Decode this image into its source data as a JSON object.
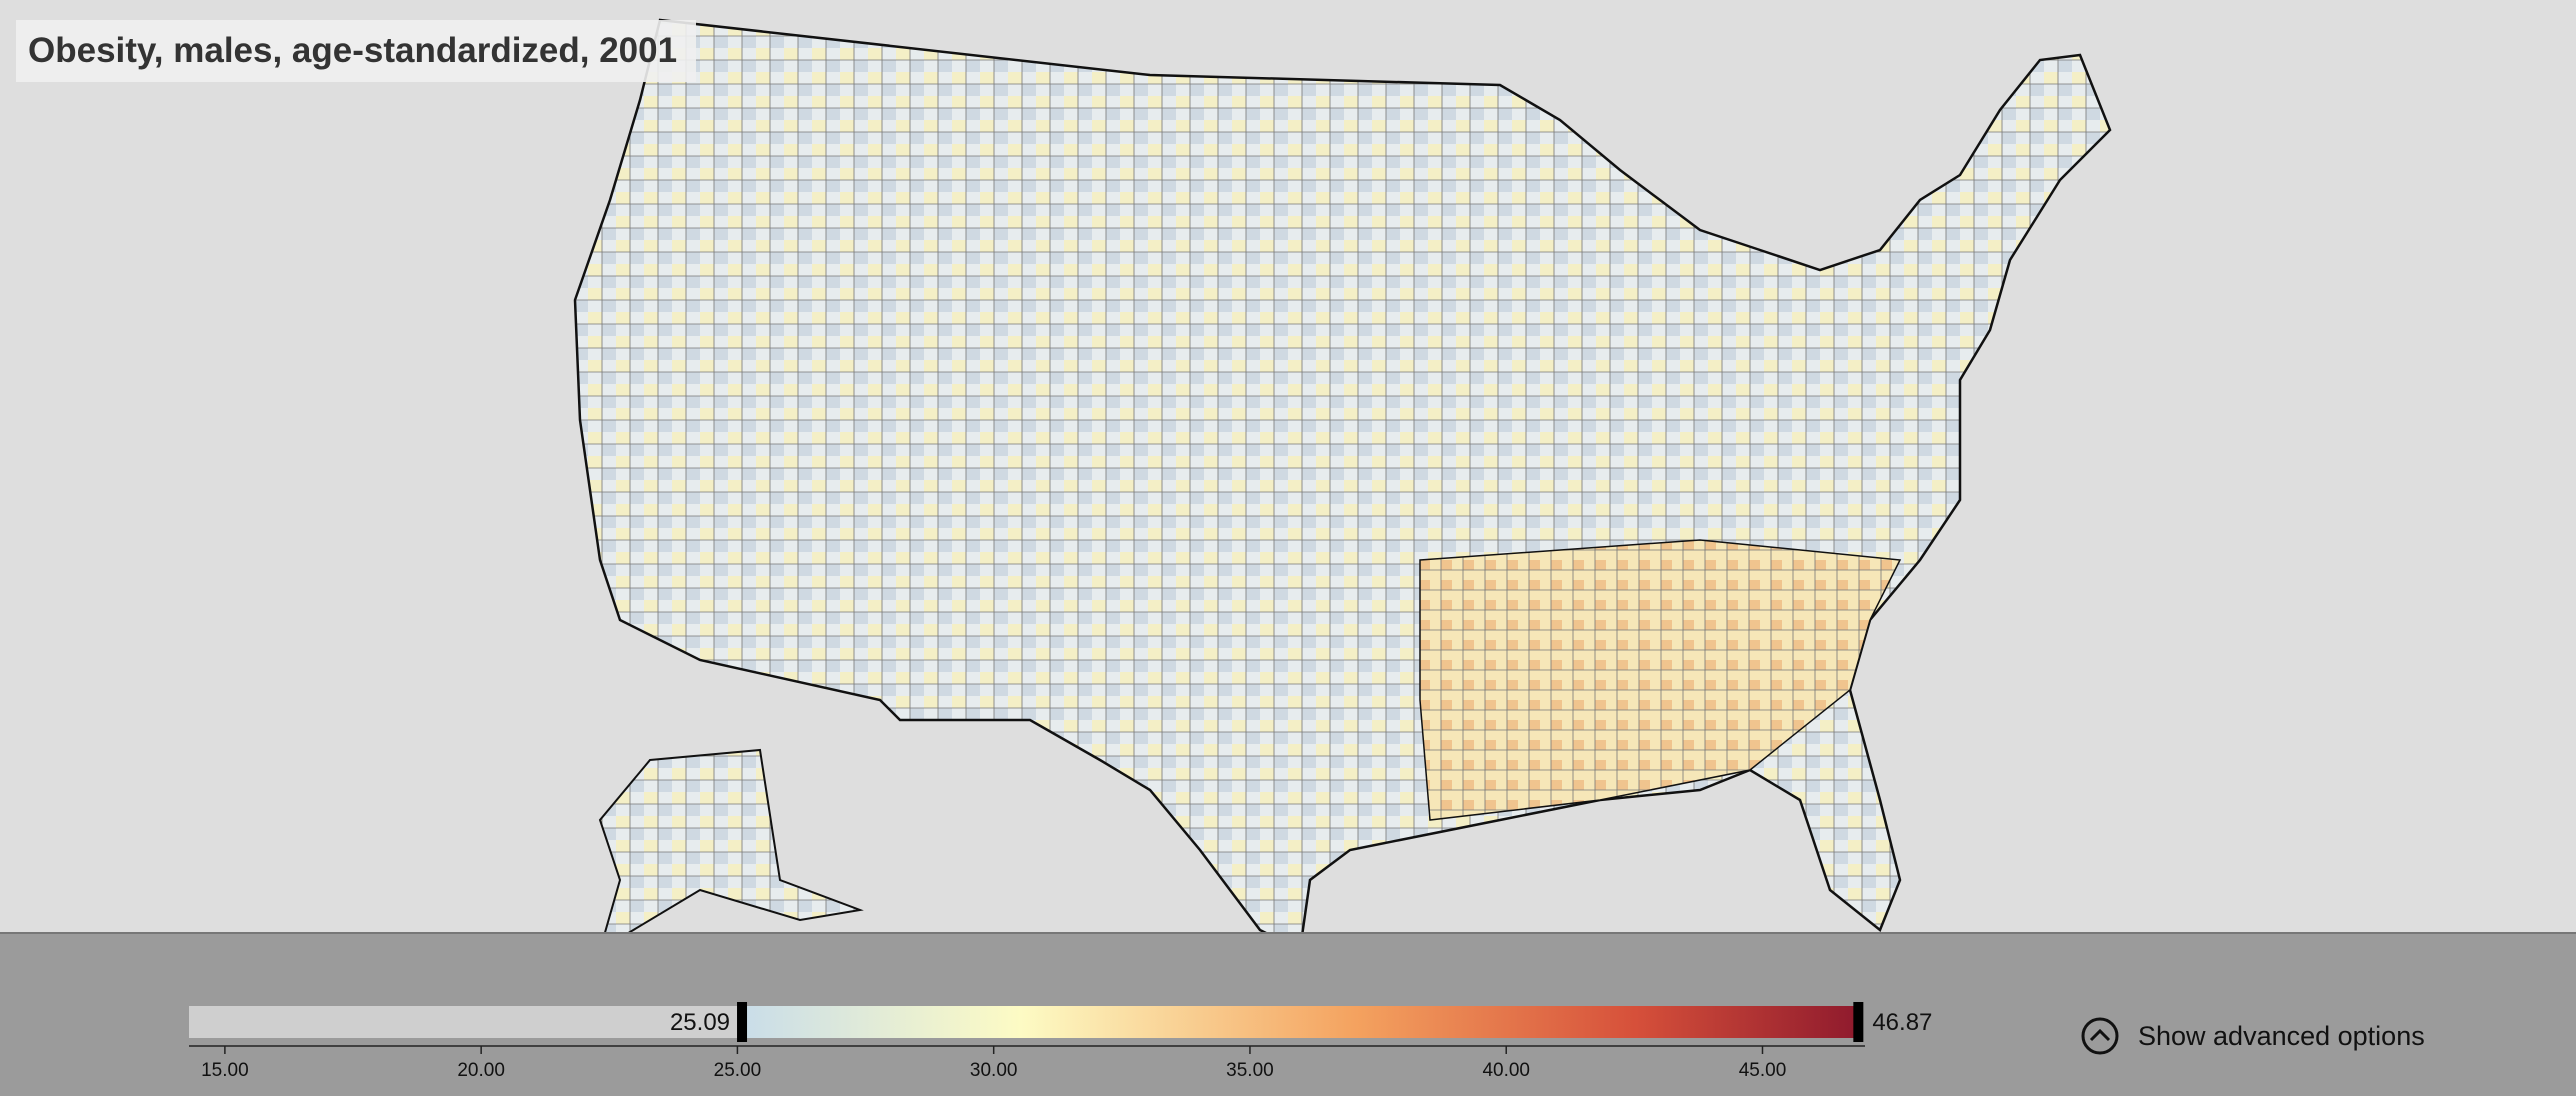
{
  "title": "Obesity, males, age-standardized, 2001",
  "legend": {
    "xlim": [
      14.3,
      47.0
    ],
    "ticks": [
      {
        "value": 15,
        "label": "15.00"
      },
      {
        "value": 20,
        "label": "20.00"
      },
      {
        "value": 25,
        "label": "25.00"
      },
      {
        "value": 30,
        "label": "30.00"
      },
      {
        "value": 35,
        "label": "35.00"
      },
      {
        "value": 40,
        "label": "40.00"
      },
      {
        "value": 45,
        "label": "45.00"
      }
    ],
    "range_min": {
      "value": 25.09,
      "label": "25.09"
    },
    "range_max": {
      "value": 46.87,
      "label": "46.87"
    }
  },
  "controls": {
    "advanced_toggle": "Show advanced options"
  }
}
